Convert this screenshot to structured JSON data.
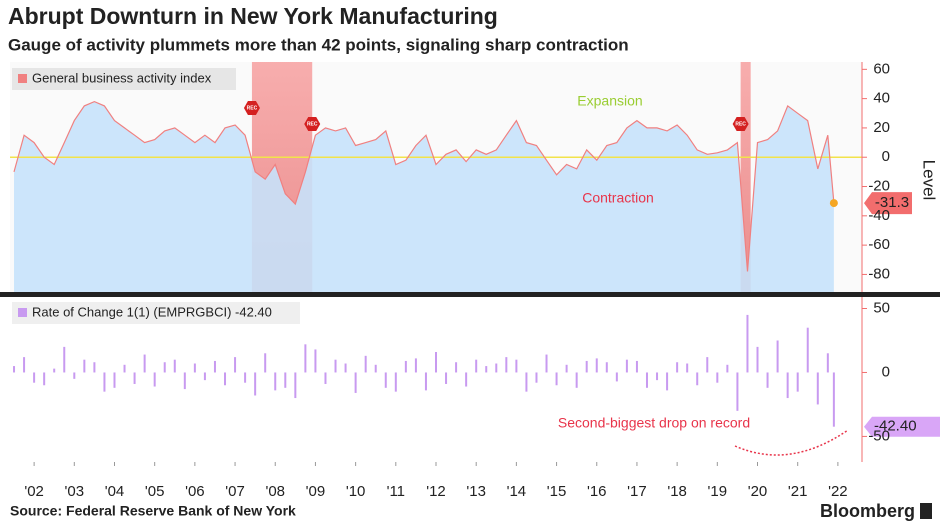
{
  "title": "Abrupt Downturn in New York Manufacturing",
  "subtitle": "Gauge of activity plummets more than 42 points, signaling sharp contraction",
  "source": "Source: Federal Reserve Bank of New York",
  "brand": "Bloomberg",
  "chart_data": [
    {
      "type": "area",
      "series": [
        {
          "name": "General business activity index",
          "color": "#f08080",
          "values": [
            -10,
            15,
            10,
            0,
            -5,
            10,
            25,
            35,
            38,
            35,
            25,
            20,
            15,
            10,
            12,
            18,
            20,
            15,
            10,
            15,
            10,
            20,
            22,
            15,
            -10,
            -15,
            -5,
            -25,
            -32,
            -10,
            15,
            20,
            18,
            20,
            8,
            10,
            12,
            18,
            -5,
            -2,
            8,
            15,
            -5,
            2,
            5,
            -3,
            5,
            2,
            5,
            15,
            25,
            10,
            8,
            -2,
            -12,
            -5,
            -8,
            5,
            -2,
            8,
            10,
            20,
            25,
            20,
            20,
            18,
            22,
            15,
            5,
            2,
            3,
            5,
            10,
            -78,
            10,
            12,
            18,
            35,
            30,
            25,
            -8,
            15,
            -31.3
          ]
        }
      ],
      "x": [
        2002,
        2002.25,
        2002.5,
        2002.75,
        2003,
        2003.25,
        2003.5,
        2003.75,
        2004,
        2004.25,
        2004.5,
        2004.75,
        2005,
        2005.25,
        2005.5,
        2005.75,
        2006,
        2006.25,
        2006.5,
        2006.75,
        2007,
        2007.25,
        2007.5,
        2007.75,
        2008,
        2008.25,
        2008.5,
        2008.75,
        2009,
        2009.25,
        2009.5,
        2009.75,
        2010,
        2010.25,
        2010.5,
        2010.75,
        2011,
        2011.25,
        2011.5,
        2011.75,
        2012,
        2012.25,
        2012.5,
        2012.75,
        2013,
        2013.25,
        2013.5,
        2013.75,
        2014,
        2014.25,
        2014.5,
        2014.75,
        2015,
        2015.25,
        2015.5,
        2015.75,
        2016,
        2016.25,
        2016.5,
        2016.75,
        2017,
        2017.25,
        2017.5,
        2017.75,
        2018,
        2018.25,
        2018.5,
        2018.75,
        2019,
        2019.25,
        2019.5,
        2019.75,
        2020,
        2020.25,
        2020.5,
        2020.75,
        2021,
        2021.25,
        2021.5,
        2021.75,
        2022,
        2022.25,
        2022.4
      ],
      "xlim": [
        2001.9,
        2023.1
      ],
      "ylim": [
        -92,
        65
      ],
      "yticks": [
        60,
        40,
        20,
        0,
        -20,
        -40,
        -60,
        -80
      ],
      "y_label": "Level",
      "zero_line": 0,
      "recessions": [
        {
          "start": 2007.92,
          "end": 2009.42
        },
        {
          "start": 2020.08,
          "end": 2020.33
        }
      ],
      "recession_label": "REC",
      "annotations": [
        "Expansion",
        "Contraction"
      ]
    },
    {
      "type": "bar",
      "series": [
        {
          "name": "Rate of Change 1(1) (EMPRGBCI) -42.40",
          "color": "#c89af0",
          "values": [
            5,
            12,
            -8,
            -10,
            3,
            20,
            -5,
            10,
            8,
            -15,
            -12,
            6,
            -9,
            14,
            -11,
            8,
            10,
            -13,
            7,
            -6,
            9,
            -10,
            12,
            -8,
            -18,
            15,
            -14,
            -12,
            -20,
            22,
            18,
            -9,
            10,
            7,
            -16,
            13,
            6,
            -12,
            -15,
            9,
            11,
            -14,
            16,
            -9,
            8,
            -11,
            10,
            5,
            7,
            12,
            10,
            -15,
            -8,
            14,
            -10,
            6,
            -12,
            9,
            11,
            8,
            -7,
            10,
            9,
            -12,
            -6,
            -14,
            8,
            7,
            -10,
            12,
            -8,
            6,
            -30,
            45,
            20,
            -12,
            25,
            -20,
            -15,
            35,
            -25,
            15,
            -42.4
          ],
          "value_labels": {
            "82": "-42.40"
          }
        }
      ],
      "xlim": [
        2001.9,
        2023.1
      ],
      "ylim": [
        -70,
        59
      ],
      "yticks": [
        50,
        0,
        -50
      ],
      "xticks": [
        {
          "value": 2002.5,
          "label": "'02"
        },
        {
          "value": 2003.5,
          "label": "'03"
        },
        {
          "value": 2004.5,
          "label": "'04"
        },
        {
          "value": 2005.5,
          "label": "'05"
        },
        {
          "value": 2006.5,
          "label": "'06"
        },
        {
          "value": 2007.5,
          "label": "'07"
        },
        {
          "value": 2008.5,
          "label": "'08"
        },
        {
          "value": 2009.5,
          "label": "'09"
        },
        {
          "value": 2010.5,
          "label": "'10"
        },
        {
          "value": 2011.5,
          "label": "'11"
        },
        {
          "value": 2012.5,
          "label": "'12"
        },
        {
          "value": 2013.5,
          "label": "'13"
        },
        {
          "value": 2014.5,
          "label": "'14"
        },
        {
          "value": 2015.5,
          "label": "'15"
        },
        {
          "value": 2016.5,
          "label": "'16"
        },
        {
          "value": 2017.5,
          "label": "'17"
        },
        {
          "value": 2018.5,
          "label": "'18"
        },
        {
          "value": 2019.5,
          "label": "'19"
        },
        {
          "value": 2020.5,
          "label": "'20"
        },
        {
          "value": 2021.5,
          "label": "'21"
        },
        {
          "value": 2022.5,
          "label": "'22"
        }
      ],
      "annotations": [
        "Second-biggest drop on record"
      ]
    }
  ]
}
